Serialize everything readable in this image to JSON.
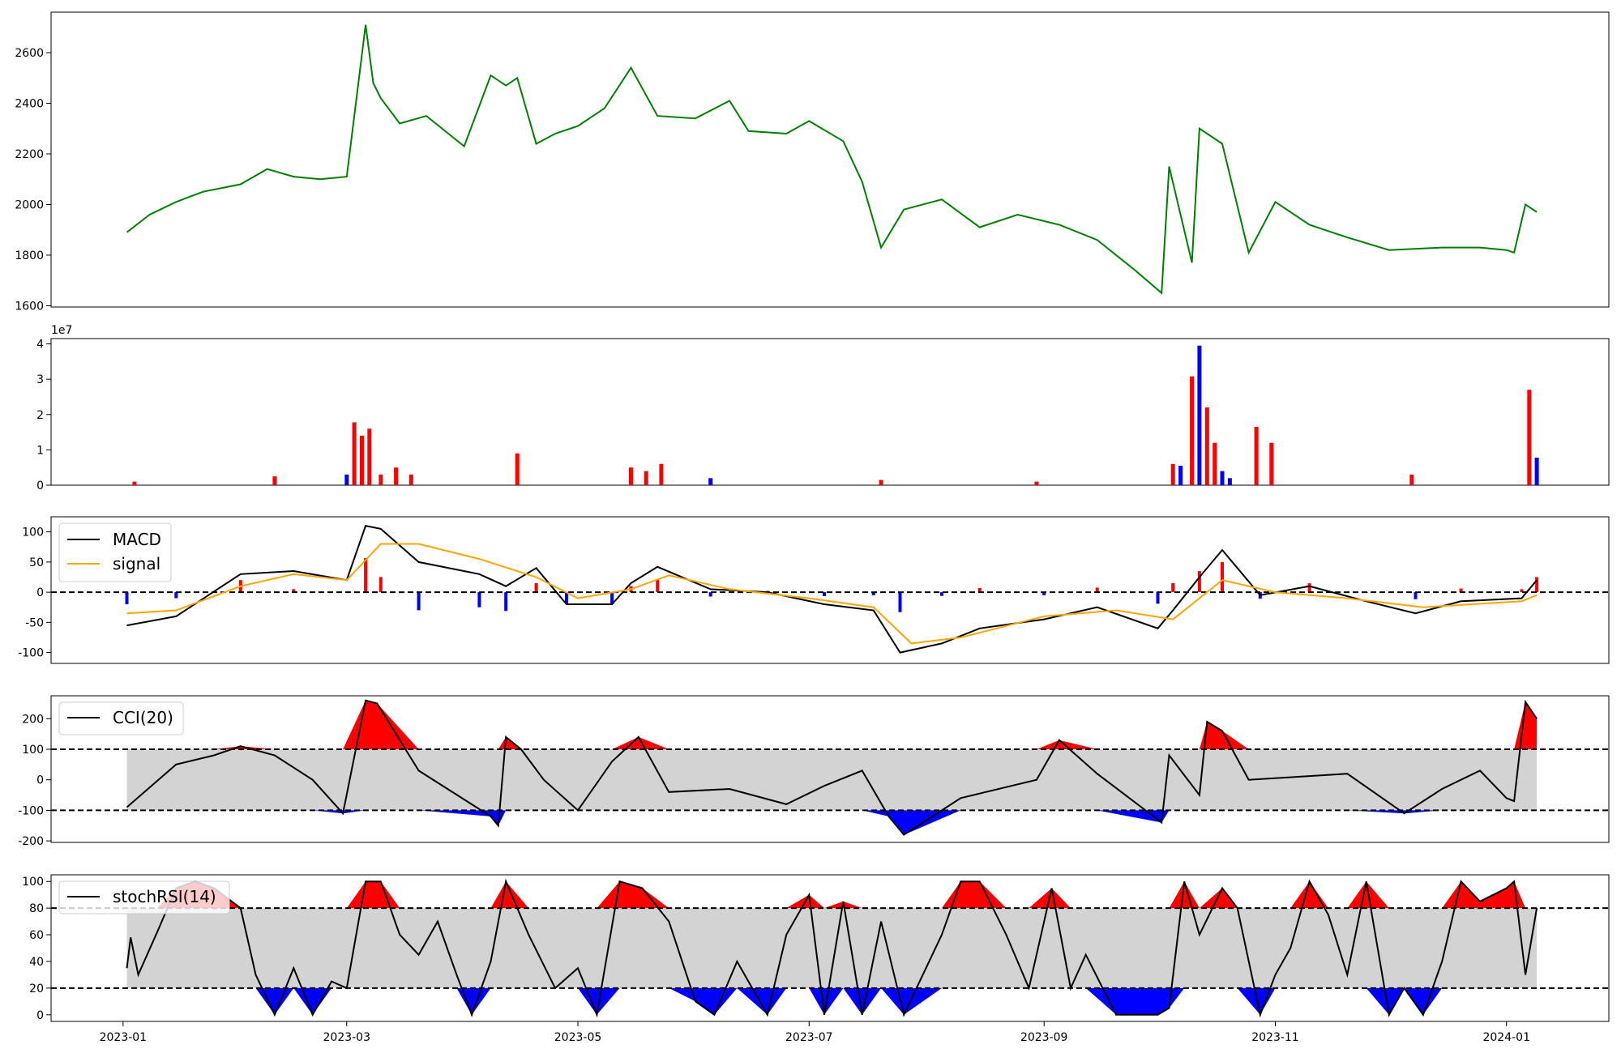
{
  "colors": {
    "price_line": "#008000",
    "volume_up": "#ff0000",
    "volume_down": "#0000ff",
    "macd_line": "#000000",
    "signal_line": "#ffa500",
    "hist_pos": "#ff0000",
    "hist_neg": "#0000ff",
    "band_fill": "#d3d3d3",
    "overbought_fill": "#ff0000",
    "oversold_fill": "#0000ff"
  },
  "chart_data": [
    {
      "id": "price",
      "type": "line",
      "x_dates": [
        "2023-01-02",
        "2023-01-08",
        "2023-01-15",
        "2023-01-22",
        "2023-02-01",
        "2023-02-08",
        "2023-02-15",
        "2023-02-22",
        "2023-03-01",
        "2023-03-06",
        "2023-03-08",
        "2023-03-10",
        "2023-03-15",
        "2023-03-22",
        "2023-04-01",
        "2023-04-08",
        "2023-04-12",
        "2023-04-15",
        "2023-04-20",
        "2023-04-25",
        "2023-05-01",
        "2023-05-08",
        "2023-05-15",
        "2023-05-22",
        "2023-06-01",
        "2023-06-10",
        "2023-06-15",
        "2023-06-25",
        "2023-07-01",
        "2023-07-10",
        "2023-07-15",
        "2023-07-20",
        "2023-07-26",
        "2023-08-05",
        "2023-08-15",
        "2023-08-25",
        "2023-09-05",
        "2023-09-15",
        "2023-09-25",
        "2023-10-02",
        "2023-10-04",
        "2023-10-10",
        "2023-10-12",
        "2023-10-18",
        "2023-10-25",
        "2023-11-01",
        "2023-11-10",
        "2023-11-20",
        "2023-12-01",
        "2023-12-15",
        "2023-12-25",
        "2024-01-01",
        "2024-01-03",
        "2024-01-06",
        "2024-01-09"
      ],
      "y": [
        1890,
        1960,
        2010,
        2050,
        2080,
        2140,
        2110,
        2100,
        2110,
        2710,
        2480,
        2420,
        2320,
        2350,
        2230,
        2510,
        2470,
        2500,
        2240,
        2280,
        2310,
        2380,
        2540,
        2350,
        2340,
        2410,
        2290,
        2280,
        2330,
        2250,
        2090,
        1830,
        1980,
        2020,
        1910,
        1960,
        1920,
        1860,
        1740,
        1650,
        2150,
        1770,
        2300,
        2240,
        1810,
        2010,
        1920,
        1870,
        1820,
        1830,
        1830,
        1820,
        1810,
        2000,
        1970
      ],
      "yticks": [
        1600,
        1800,
        2000,
        2200,
        2400,
        2600
      ],
      "ylim": [
        1595,
        2760
      ]
    },
    {
      "id": "volume",
      "type": "bar",
      "scale_label": "1e7",
      "yticks": [
        0,
        1,
        2,
        3,
        4
      ],
      "ylim": [
        0,
        4.15
      ],
      "x_dates": [
        "2023-01-04",
        "2023-02-10",
        "2023-03-01",
        "2023-03-03",
        "2023-03-05",
        "2023-03-07",
        "2023-03-10",
        "2023-03-14",
        "2023-03-18",
        "2023-04-15",
        "2023-05-15",
        "2023-05-19",
        "2023-05-23",
        "2023-06-05",
        "2023-07-20",
        "2023-08-30",
        "2023-10-05",
        "2023-10-07",
        "2023-10-10",
        "2023-10-12",
        "2023-10-14",
        "2023-10-16",
        "2023-10-18",
        "2023-10-20",
        "2023-10-27",
        "2023-10-31",
        "2023-12-07",
        "2024-01-07",
        "2024-01-09"
      ],
      "values": [
        0.1,
        0.25,
        0.3,
        1.78,
        1.4,
        1.6,
        0.3,
        0.5,
        0.3,
        0.9,
        0.5,
        0.4,
        0.6,
        0.2,
        0.15,
        0.1,
        0.6,
        0.55,
        3.08,
        3.95,
        2.2,
        1.2,
        0.4,
        0.2,
        1.65,
        1.2,
        0.3,
        2.7,
        0.78
      ],
      "up": [
        true,
        true,
        false,
        true,
        true,
        true,
        true,
        true,
        true,
        true,
        true,
        true,
        true,
        false,
        true,
        true,
        true,
        false,
        true,
        false,
        true,
        true,
        false,
        false,
        true,
        true,
        true,
        true,
        false
      ]
    },
    {
      "id": "macd",
      "type": "line",
      "yticks": [
        -100,
        -50,
        0,
        50,
        100
      ],
      "ylim": [
        -118,
        125
      ],
      "zero_line": 0,
      "series": [
        {
          "name": "MACD",
          "x_dates": [
            "2023-01-02",
            "2023-01-15",
            "2023-02-01",
            "2023-02-15",
            "2023-03-01",
            "2023-03-06",
            "2023-03-10",
            "2023-03-20",
            "2023-04-05",
            "2023-04-12",
            "2023-04-20",
            "2023-04-28",
            "2023-05-10",
            "2023-05-15",
            "2023-05-22",
            "2023-06-05",
            "2023-06-20",
            "2023-07-05",
            "2023-07-18",
            "2023-07-25",
            "2023-08-05",
            "2023-08-15",
            "2023-09-01",
            "2023-09-15",
            "2023-10-01",
            "2023-10-05",
            "2023-10-12",
            "2023-10-18",
            "2023-10-28",
            "2023-11-10",
            "2023-11-25",
            "2023-12-08",
            "2023-12-20",
            "2024-01-05",
            "2024-01-09"
          ],
          "y": [
            -55,
            -40,
            30,
            35,
            20,
            110,
            105,
            50,
            30,
            10,
            40,
            -20,
            -20,
            15,
            42,
            5,
            0,
            -20,
            -30,
            -100,
            -85,
            -60,
            -45,
            -25,
            -60,
            -30,
            25,
            70,
            -5,
            10,
            -15,
            -35,
            -15,
            -10,
            20
          ]
        },
        {
          "name": "signal",
          "x_dates": [
            "2023-01-02",
            "2023-01-15",
            "2023-02-01",
            "2023-02-15",
            "2023-03-01",
            "2023-03-10",
            "2023-03-20",
            "2023-04-05",
            "2023-04-20",
            "2023-05-01",
            "2023-05-15",
            "2023-05-25",
            "2023-06-10",
            "2023-07-01",
            "2023-07-18",
            "2023-07-28",
            "2023-08-10",
            "2023-09-01",
            "2023-09-20",
            "2023-10-05",
            "2023-10-18",
            "2023-11-01",
            "2023-11-20",
            "2023-12-10",
            "2024-01-05",
            "2024-01-09"
          ],
          "y": [
            -35,
            -30,
            10,
            30,
            20,
            80,
            80,
            55,
            25,
            -10,
            5,
            28,
            5,
            -10,
            -25,
            -85,
            -75,
            -40,
            -30,
            -45,
            20,
            0,
            -10,
            -25,
            -15,
            -5
          ]
        }
      ]
    },
    {
      "id": "cci",
      "type": "line",
      "yticks": [
        -200,
        -100,
        0,
        100,
        200
      ],
      "ylim": [
        -205,
        275
      ],
      "thresholds": [
        100,
        -100
      ],
      "series": [
        {
          "name": "CCI(20)",
          "x_dates": [
            "2023-01-02",
            "2023-01-15",
            "2023-01-25",
            "2023-02-01",
            "2023-02-10",
            "2023-02-20",
            "2023-02-28",
            "2023-03-06",
            "2023-03-09",
            "2023-03-20",
            "2023-04-08",
            "2023-04-10",
            "2023-04-12",
            "2023-04-16",
            "2023-04-22",
            "2023-05-01",
            "2023-05-10",
            "2023-05-17",
            "2023-05-25",
            "2023-06-10",
            "2023-06-25",
            "2023-07-05",
            "2023-07-15",
            "2023-07-22",
            "2023-07-26",
            "2023-08-10",
            "2023-08-30",
            "2023-09-05",
            "2023-09-15",
            "2023-10-02",
            "2023-10-04",
            "2023-10-12",
            "2023-10-14",
            "2023-10-18",
            "2023-10-25",
            "2023-11-20",
            "2023-12-05",
            "2023-12-15",
            "2023-12-25",
            "2024-01-01",
            "2024-01-03",
            "2024-01-06",
            "2024-01-09"
          ],
          "y": [
            -90,
            50,
            80,
            110,
            80,
            0,
            -110,
            260,
            250,
            30,
            -120,
            -150,
            140,
            100,
            0,
            -100,
            60,
            140,
            -40,
            -30,
            -80,
            -20,
            30,
            -120,
            -180,
            -60,
            0,
            130,
            20,
            -140,
            80,
            -50,
            190,
            160,
            0,
            20,
            -110,
            -30,
            30,
            -60,
            -70,
            255,
            200
          ]
        }
      ]
    },
    {
      "id": "stochrsi",
      "type": "line",
      "yticks": [
        0,
        20,
        40,
        60,
        80,
        100
      ],
      "ylim": [
        -5,
        105
      ],
      "thresholds": [
        80,
        20
      ],
      "series": [
        {
          "name": "stochRSI(14)",
          "x_dates": [
            "2023-01-02",
            "2023-01-03",
            "2023-01-05",
            "2023-01-10",
            "2023-01-15",
            "2023-01-20",
            "2023-01-25",
            "2023-02-01",
            "2023-02-05",
            "2023-02-10",
            "2023-02-15",
            "2023-02-20",
            "2023-02-25",
            "2023-03-01",
            "2023-03-06",
            "2023-03-10",
            "2023-03-15",
            "2023-03-20",
            "2023-03-25",
            "2023-03-30",
            "2023-04-03",
            "2023-04-08",
            "2023-04-12",
            "2023-04-18",
            "2023-04-25",
            "2023-05-01",
            "2023-05-06",
            "2023-05-12",
            "2023-05-18",
            "2023-05-25",
            "2023-06-01",
            "2023-06-06",
            "2023-06-12",
            "2023-06-20",
            "2023-06-25",
            "2023-07-01",
            "2023-07-05",
            "2023-07-10",
            "2023-07-15",
            "2023-07-20",
            "2023-07-26",
            "2023-08-05",
            "2023-08-10",
            "2023-08-15",
            "2023-08-22",
            "2023-08-28",
            "2023-09-03",
            "2023-09-08",
            "2023-09-12",
            "2023-09-20",
            "2023-09-25",
            "2023-10-01",
            "2023-10-04",
            "2023-10-08",
            "2023-10-12",
            "2023-10-18",
            "2023-10-22",
            "2023-10-28",
            "2023-11-01",
            "2023-11-05",
            "2023-11-10",
            "2023-11-15",
            "2023-11-20",
            "2023-11-25",
            "2023-12-01",
            "2023-12-05",
            "2023-12-10",
            "2023-12-15",
            "2023-12-20",
            "2023-12-25",
            "2024-01-01",
            "2024-01-03",
            "2024-01-06",
            "2024-01-09"
          ],
          "y": [
            35,
            58,
            30,
            62,
            95,
            100,
            95,
            80,
            30,
            0,
            35,
            0,
            25,
            20,
            100,
            100,
            60,
            45,
            70,
            30,
            0,
            40,
            100,
            60,
            20,
            35,
            0,
            100,
            95,
            70,
            10,
            0,
            40,
            0,
            60,
            90,
            0,
            85,
            0,
            70,
            0,
            60,
            100,
            100,
            60,
            20,
            95,
            20,
            45,
            0,
            0,
            0,
            5,
            100,
            60,
            95,
            80,
            0,
            30,
            50,
            100,
            75,
            30,
            100,
            0,
            20,
            0,
            40,
            100,
            85,
            95,
            100,
            30,
            80
          ]
        }
      ]
    }
  ],
  "x_axis": {
    "ticks": [
      "2023-01",
      "2023-03",
      "2023-05",
      "2023-07",
      "2023-09",
      "2023-11",
      "2024-01"
    ],
    "xlim": [
      "2022-12-13",
      "2024-01-28"
    ]
  }
}
